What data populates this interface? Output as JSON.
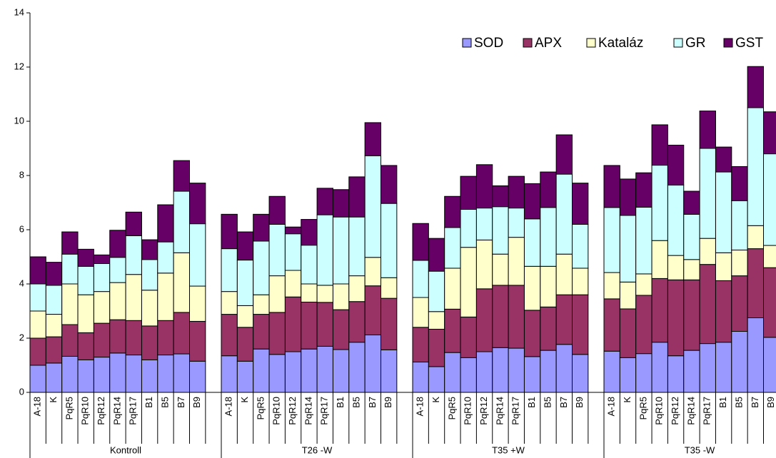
{
  "chart_data": {
    "type": "stacked_bar",
    "groups": [
      {
        "name": "Kontroll",
        "categories": [
          "A-18",
          "K",
          "PqR5",
          "PqR10",
          "PqR12",
          "PqR14",
          "PqR17",
          "B1",
          "B5",
          "B7",
          "B9"
        ]
      },
      {
        "name": "T26 -W",
        "categories": [
          "A-18",
          "K",
          "PqR5",
          "PqR10",
          "PqR12",
          "PqR14",
          "PqR17",
          "B1",
          "B5",
          "B7",
          "B9"
        ]
      },
      {
        "name": "T35 +W",
        "categories": [
          "A-18",
          "K",
          "PqR5",
          "PqR10",
          "PqR12",
          "PqR14",
          "PqR17",
          "B1",
          "B5",
          "B7",
          "B9"
        ]
      },
      {
        "name": "T35 -W",
        "categories": [
          "A-18",
          "K",
          "PqR5",
          "PqR10",
          "PqR12",
          "PqR14",
          "PqR17",
          "B1",
          "B5",
          "B7",
          "B9"
        ]
      }
    ],
    "series": [
      {
        "name": "SOD",
        "color": "#9999ff",
        "values": [
          1.0,
          1.08,
          1.33,
          1.2,
          1.3,
          1.45,
          1.38,
          1.2,
          1.38,
          1.42,
          1.15,
          1.35,
          1.15,
          1.6,
          1.4,
          1.5,
          1.6,
          1.7,
          1.58,
          1.85,
          2.12,
          1.57,
          1.12,
          0.95,
          1.47,
          1.28,
          1.5,
          1.65,
          1.63,
          1.32,
          1.55,
          1.77,
          1.4,
          1.52,
          1.28,
          1.43,
          1.85,
          1.35,
          1.55,
          1.8,
          1.85,
          2.25,
          2.75,
          2.03
        ]
      },
      {
        "name": "APX",
        "color": "#993366",
        "values": [
          1.0,
          0.97,
          1.17,
          1.0,
          1.25,
          1.23,
          1.27,
          1.25,
          1.27,
          1.53,
          1.47,
          1.53,
          1.25,
          1.28,
          1.55,
          2.02,
          1.73,
          1.62,
          1.47,
          1.5,
          1.81,
          1.9,
          1.28,
          1.38,
          1.6,
          1.5,
          2.32,
          2.3,
          2.32,
          1.71,
          1.6,
          1.83,
          2.2,
          1.93,
          1.8,
          2.15,
          2.35,
          2.8,
          2.6,
          2.92,
          2.27,
          2.05,
          2.55,
          2.57
        ]
      },
      {
        "name": "Kataláz",
        "color": "#ffffcc",
        "values": [
          1.0,
          0.83,
          1.5,
          1.4,
          1.17,
          1.37,
          1.7,
          1.32,
          1.75,
          2.2,
          1.3,
          0.84,
          0.8,
          0.72,
          1.35,
          0.98,
          0.67,
          0.63,
          0.95,
          0.95,
          1.05,
          0.76,
          1.1,
          0.65,
          1.51,
          2.57,
          1.8,
          1.15,
          1.77,
          1.62,
          1.5,
          1.5,
          0.98,
          0.97,
          0.99,
          0.79,
          1.4,
          0.9,
          0.75,
          0.96,
          1.03,
          0.95,
          0.85,
          0.82
        ]
      },
      {
        "name": "GR",
        "color": "#ccffff",
        "values": [
          1.0,
          1.07,
          1.1,
          1.05,
          1.03,
          0.93,
          1.43,
          1.13,
          1.15,
          2.27,
          2.3,
          1.58,
          1.68,
          1.98,
          1.9,
          1.35,
          1.43,
          2.6,
          2.47,
          2.17,
          3.75,
          2.74,
          1.37,
          1.49,
          1.5,
          1.4,
          1.18,
          1.75,
          1.08,
          1.75,
          2.17,
          2.95,
          1.62,
          2.4,
          2.46,
          2.46,
          2.78,
          2.6,
          1.67,
          3.32,
          2.98,
          1.82,
          4.35,
          3.38
        ]
      },
      {
        "name": "GST",
        "color": "#660066",
        "values": [
          1.0,
          0.85,
          0.82,
          0.63,
          0.32,
          1.0,
          0.87,
          0.73,
          1.37,
          1.13,
          1.5,
          1.27,
          1.04,
          0.99,
          1.03,
          0.25,
          0.95,
          0.98,
          1.01,
          1.48,
          1.22,
          1.4,
          1.36,
          1.21,
          1.15,
          1.22,
          1.6,
          0.77,
          1.17,
          1.3,
          1.31,
          1.45,
          1.52,
          1.55,
          1.34,
          1.27,
          1.49,
          1.47,
          0.85,
          1.38,
          0.92,
          1.26,
          1.52,
          1.55
        ]
      }
    ],
    "ylim": [
      0,
      14
    ],
    "yticks": [
      0,
      2,
      4,
      6,
      8,
      10,
      12,
      14
    ],
    "legend": "top-right"
  }
}
